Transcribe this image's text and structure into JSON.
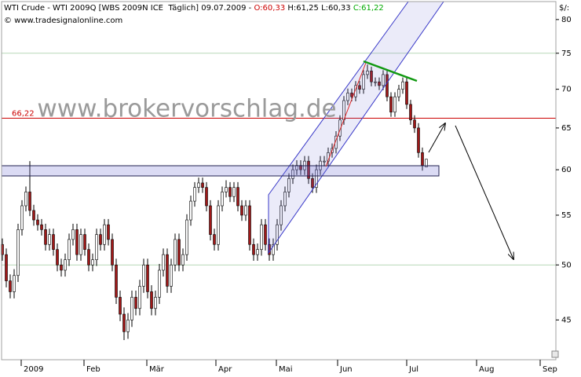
{
  "chart_data": {
    "type": "candlestick",
    "header": [
      {
        "text": "WTI Crude - WTI 2009Q [WBS 2009N ICE  Täglich] 09.07.2009 - ",
        "color": "#000000"
      },
      {
        "text": "O:60,33",
        "color": "#cc0000"
      },
      {
        "text": " H:61,25",
        "color": "#000000"
      },
      {
        "text": " L:60,33",
        "color": "#000000"
      },
      {
        "text": " C:61,22",
        "color": "#00aa00"
      }
    ],
    "copyright": "© www.tradesignalonline.com",
    "watermark": "www.brokervorschlag.de",
    "axis_unit_label": "$/:",
    "yscale": "log",
    "ylim": [
      41.7,
      82.8
    ],
    "yticks": [
      45,
      50,
      55,
      60,
      65,
      70,
      75,
      80
    ],
    "grid_lines": [
      75,
      50
    ],
    "grid_color": "#b8d8b8",
    "xlim": [
      -0.2,
      141
    ],
    "xticks": [
      {
        "value": 4.8,
        "label": "2009"
      },
      {
        "value": 20.8,
        "label": "Feb"
      },
      {
        "value": 36.8,
        "label": "Mär"
      },
      {
        "value": 54.4,
        "label": "Apr"
      },
      {
        "value": 69.8,
        "label": "Mai"
      },
      {
        "value": 85.4,
        "label": "Jun"
      },
      {
        "value": 103,
        "label": "Jul"
      },
      {
        "value": 120.8,
        "label": "Aug"
      },
      {
        "value": 137,
        "label": "Sep"
      }
    ],
    "hline": {
      "value": 66.22,
      "label": "66,22",
      "color": "#cc0000"
    },
    "up_color": "#ffffff",
    "down_color": "#a01818",
    "x": [
      0,
      1,
      2,
      3,
      4,
      5,
      6,
      7,
      8,
      9,
      10,
      11,
      12,
      13,
      14,
      15,
      16,
      17,
      18,
      19,
      20,
      21,
      22,
      23,
      24,
      25,
      26,
      27,
      28,
      29,
      30,
      31,
      32,
      33,
      34,
      35,
      36,
      37,
      38,
      39,
      40,
      41,
      42,
      43,
      44,
      45,
      46,
      47,
      48,
      49,
      50,
      51,
      52,
      53,
      54,
      55,
      56,
      57,
      58,
      59,
      60,
      61,
      62,
      63,
      64,
      65,
      66,
      67,
      68,
      69,
      70,
      71,
      72,
      73,
      74,
      75,
      76,
      77,
      78,
      79,
      80,
      81,
      82,
      83,
      84,
      85,
      86,
      87,
      88,
      89,
      90,
      91,
      92,
      93,
      94,
      95,
      96,
      97,
      98,
      99,
      100,
      101,
      102,
      103,
      104,
      105,
      106,
      107,
      108
    ],
    "open": [
      52,
      51,
      48.5,
      47.5,
      49,
      53.5,
      56,
      57.5,
      55.5,
      54.5,
      54,
      53.5,
      52,
      53,
      51.5,
      50,
      49.5,
      50.5,
      52.5,
      53.5,
      51,
      53,
      51.5,
      50,
      50.5,
      53,
      52,
      54,
      52.5,
      50,
      47,
      45.5,
      44,
      45,
      47,
      46,
      48,
      50,
      47.5,
      46,
      47,
      49.5,
      51,
      48,
      50,
      52.5,
      50,
      51,
      54.5,
      56.5,
      58,
      58.5,
      58,
      56,
      53,
      52,
      56,
      57.5,
      58,
      57,
      58,
      56,
      55,
      56,
      52,
      51,
      51.5,
      54,
      52,
      51,
      52,
      54,
      56,
      57.5,
      59,
      60,
      60.5,
      60,
      61,
      59,
      58,
      60,
      61,
      61,
      62,
      62.5,
      64,
      66,
      68.5,
      69.5,
      69,
      70.5,
      70,
      72,
      72.5,
      71,
      71,
      70.5,
      72,
      69,
      67,
      69,
      70,
      71,
      68,
      66,
      65,
      62,
      60.33
    ],
    "high": [
      52.6,
      51.6,
      49.1,
      49.6,
      54.1,
      56.6,
      58.1,
      61,
      56.1,
      55.1,
      54.6,
      54.1,
      53.6,
      53.6,
      52.1,
      50.6,
      51.1,
      53.1,
      54.1,
      54.1,
      53.6,
      53.6,
      52.1,
      51.1,
      53.6,
      53.6,
      54.6,
      54.6,
      53.1,
      50.6,
      47.6,
      46.1,
      45.6,
      47.6,
      47.6,
      48.6,
      50.6,
      50.6,
      48.1,
      47.6,
      50.1,
      51.6,
      51.6,
      50.6,
      53.1,
      53.1,
      51.6,
      55.1,
      57.1,
      58.6,
      59.1,
      59.1,
      58.6,
      56.6,
      53.6,
      56.6,
      58.1,
      58.8,
      58.6,
      58.6,
      58.6,
      56.6,
      56.6,
      56.6,
      52.6,
      52.1,
      54.6,
      54.6,
      52.6,
      52.6,
      54.6,
      56.6,
      58.1,
      59.6,
      60.6,
      61.1,
      61.1,
      61.6,
      61.6,
      59.6,
      60.6,
      61.6,
      61.6,
      62.6,
      63.1,
      64.6,
      66.6,
      69.1,
      70.1,
      70.1,
      71.1,
      71.1,
      72.6,
      73.4,
      73.1,
      71.6,
      71.6,
      72.6,
      72.6,
      69.6,
      69.6,
      70.6,
      71.6,
      71.6,
      68.6,
      66.6,
      65.6,
      62.6,
      61.25
    ],
    "low": [
      50.4,
      47.9,
      46.9,
      46.9,
      48.4,
      52.9,
      55.4,
      54.9,
      53.9,
      53.4,
      52.9,
      51.4,
      51.4,
      50.9,
      49.4,
      48.9,
      48.9,
      49.9,
      51.9,
      50.4,
      50.4,
      50.9,
      49.4,
      49.4,
      49.9,
      51.4,
      51.4,
      51.9,
      49.4,
      46.4,
      44.9,
      43.3,
      43.4,
      44.4,
      45.4,
      45.4,
      47.4,
      46.9,
      45.4,
      45.4,
      46.4,
      48.9,
      47.4,
      47.4,
      49.4,
      49.4,
      49.4,
      50.4,
      53.9,
      55.9,
      57.4,
      57.4,
      55.4,
      52.4,
      51.4,
      51.4,
      55.4,
      56.9,
      56.4,
      56.4,
      55.4,
      54.4,
      54.4,
      51.4,
      50.4,
      50.4,
      50.9,
      51.4,
      50.4,
      50.4,
      51.4,
      53.4,
      55.4,
      56.9,
      58.4,
      59.4,
      59.4,
      59.4,
      58.4,
      57.4,
      57.4,
      59.4,
      60.4,
      60.4,
      61.4,
      61.9,
      63.4,
      65.4,
      67.9,
      68.4,
      68.4,
      69.4,
      69.4,
      71.4,
      70.4,
      70.4,
      69.9,
      69.9,
      68.4,
      66.4,
      66.4,
      68.4,
      69.4,
      67.4,
      65.4,
      64.4,
      61.4,
      59.9,
      60.33
    ],
    "close": [
      51,
      48.5,
      47.5,
      49,
      53.5,
      56,
      57.5,
      55.5,
      54.5,
      54,
      53.5,
      52,
      53,
      51.5,
      50,
      49.5,
      50.5,
      52.5,
      53.5,
      51,
      53,
      51.5,
      50,
      50.5,
      53,
      52,
      54,
      52.5,
      50,
      47,
      45.5,
      44,
      45,
      47,
      46,
      48,
      50,
      47.5,
      46,
      47,
      49.5,
      51,
      48,
      50,
      52.5,
      50,
      51,
      54.5,
      56.5,
      58,
      58.5,
      58,
      56,
      53,
      52,
      56,
      57.5,
      58,
      57,
      58,
      56,
      55,
      56,
      52,
      51,
      51.5,
      54,
      52,
      51,
      52,
      54,
      56,
      57.5,
      59,
      60,
      60.5,
      60,
      61,
      59,
      58,
      60,
      61,
      61,
      62,
      62.5,
      64,
      66,
      68.5,
      69.5,
      69,
      70.5,
      70,
      72,
      72.5,
      71,
      71,
      70.5,
      72,
      69,
      67,
      69,
      70,
      71,
      68,
      66,
      65,
      62,
      60.5,
      61.22
    ]
  }
}
